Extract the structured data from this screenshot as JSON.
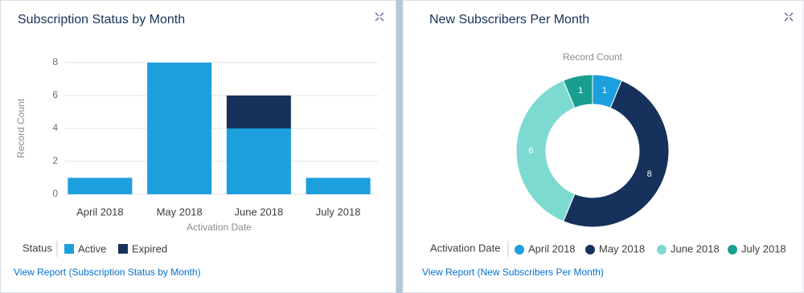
{
  "chart_data": [
    {
      "type": "stacked_bar",
      "title": "Subscription Status by Month",
      "categories": [
        "April 2018",
        "May 2018",
        "June 2018",
        "July 2018"
      ],
      "series": [
        {
          "name": "Active",
          "color": "#1b9fdd",
          "values": [
            1,
            8,
            4,
            1
          ]
        },
        {
          "name": "Expired",
          "color": "#16325c",
          "values": [
            0,
            0,
            2,
            0
          ]
        }
      ],
      "ylim": [
        0,
        8
      ],
      "yticks": [
        0,
        2,
        4,
        6,
        8
      ],
      "grid": true,
      "y_label": "Record Count",
      "x_label": "Activation Date",
      "legend_title": "Status",
      "link": "View Report (Subscription Status by Month)"
    },
    {
      "type": "donut",
      "title": "New Subscribers Per Month",
      "subtitle": "Record Count",
      "categories": [
        "April 2018",
        "May 2018",
        "June 2018",
        "July 2018"
      ],
      "values": [
        1,
        8,
        6,
        1
      ],
      "colors": [
        "#1b9fdd",
        "#16325c",
        "#7ddad1",
        "#1a9e8f"
      ],
      "legend_title": "Activation Date",
      "link": "View Report (New Subscribers Per Month)"
    }
  ]
}
